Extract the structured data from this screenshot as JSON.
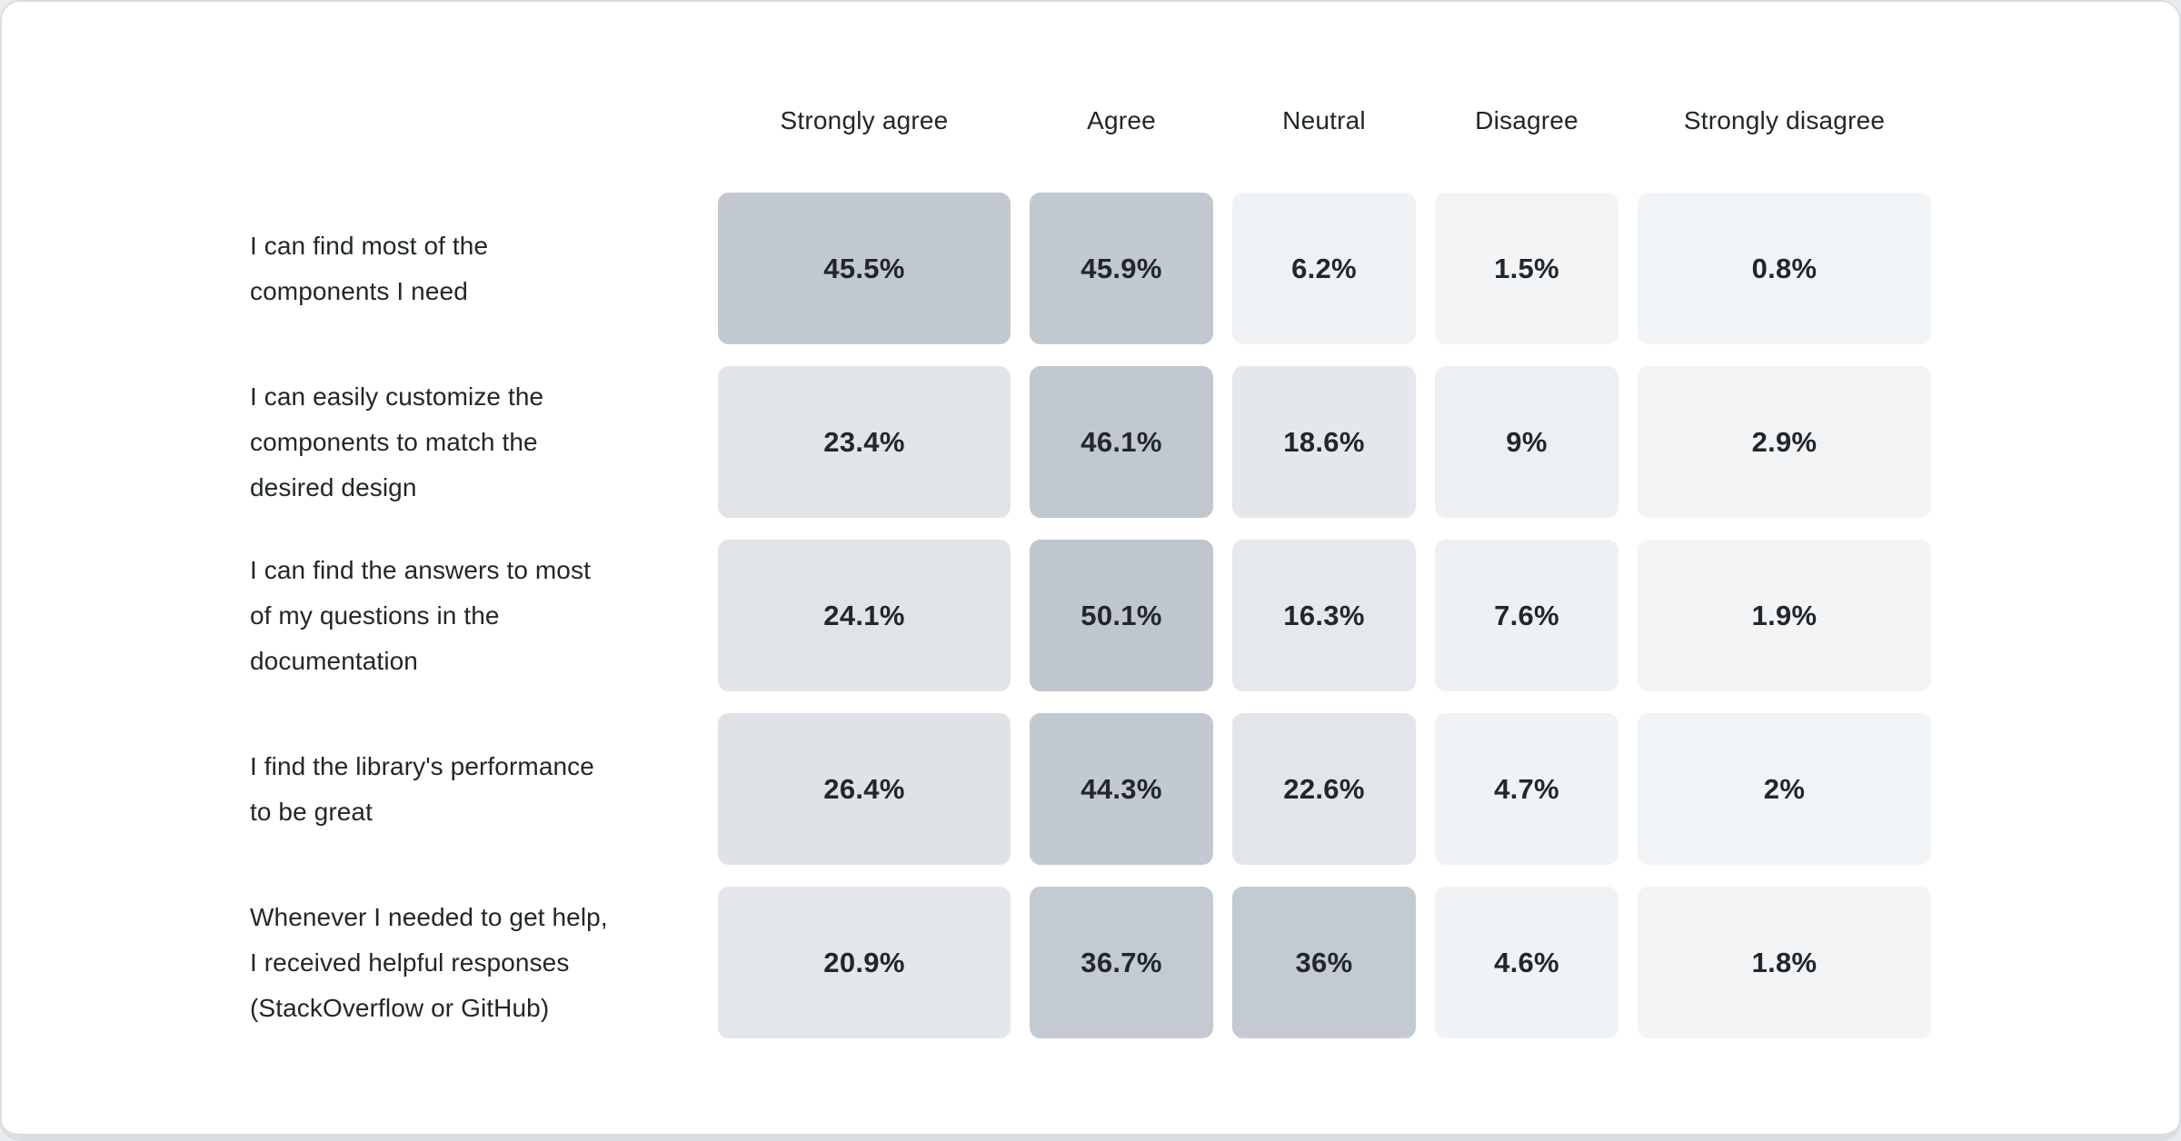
{
  "window": {
    "background": "#ffffff",
    "card_border_color": "#d9dee3",
    "text_color": "#21272a"
  },
  "chart_data": {
    "type": "heatmap",
    "title": "",
    "legend": "none",
    "grid": "off",
    "columns": [
      "Strongly agree",
      "Agree",
      "Neutral",
      "Disagree",
      "Strongly disagree"
    ],
    "color_scale": {
      "min_value": 0.8,
      "max_value": 50.1,
      "min_color": "#f2f5f7",
      "max_color": "#bfc6ce"
    },
    "rows": [
      {
        "label": "I can find most of the components I need",
        "label_lines": [
          "I can find most of the",
          "components I need"
        ],
        "values": [
          "45.5%",
          "45.9%",
          "6.2%",
          "1.5%",
          "0.8%"
        ],
        "values_numeric": [
          45.5,
          45.9,
          6.2,
          1.5,
          0.8
        ],
        "colors": [
          "#c1c8d0",
          "#c1c8d0",
          "#eff2f4",
          "#f2f4f6",
          "#f2f5f7"
        ]
      },
      {
        "label": "I can easily customize the components to match the desired design",
        "label_lines": [
          "I can easily customize the",
          "components to match the",
          "desired design"
        ],
        "values": [
          "23.4%",
          "46.1%",
          "18.6%",
          "9%",
          "2.9%"
        ],
        "values_numeric": [
          23.4,
          46.1,
          18.6,
          9,
          2.9
        ],
        "colors": [
          "#e1e5e9",
          "#c1c8d0",
          "#e4e8ec",
          "#edf0f3",
          "#f1f3f5"
        ]
      },
      {
        "label": "I can find the answers to most of my questions in the documentation",
        "label_lines": [
          "I can find the answers to most",
          "of my questions in the",
          "documentation"
        ],
        "values": [
          "24.1%",
          "50.1%",
          "16.3%",
          "7.6%",
          "1.9%"
        ],
        "values_numeric": [
          24.1,
          50.1,
          16.3,
          7.6,
          1.9
        ],
        "colors": [
          "#e0e4e9",
          "#bfc6ce",
          "#e5e9ed",
          "#eef1f4",
          "#f2f4f6"
        ]
      },
      {
        "label": "I find the library's performance to be great",
        "label_lines": [
          "I find the library's performance",
          "to be great"
        ],
        "values": [
          "26.4%",
          "44.3%",
          "22.6%",
          "4.7%",
          "2%"
        ],
        "values_numeric": [
          26.4,
          44.3,
          22.6,
          4.7,
          2
        ],
        "colors": [
          "#dfe3e8",
          "#c2c9d1",
          "#e2e6ea",
          "#f0f3f5",
          "#f1f4f6"
        ]
      },
      {
        "label": "Whenever I needed to get help, I received helpful responses (StackOverflow or GitHub)",
        "label_lines": [
          "Whenever I needed to get help,",
          "I received helpful responses",
          "(StackOverflow or GitHub)"
        ],
        "values": [
          "20.9%",
          "36.7%",
          "36%",
          "4.6%",
          "1.8%"
        ],
        "values_numeric": [
          20.9,
          36.7,
          36,
          4.6,
          1.8
        ],
        "colors": [
          "#e3e7eb",
          "#c3cad1",
          "#c3cad2",
          "#f0f3f5",
          "#f2f4f6"
        ]
      }
    ]
  }
}
